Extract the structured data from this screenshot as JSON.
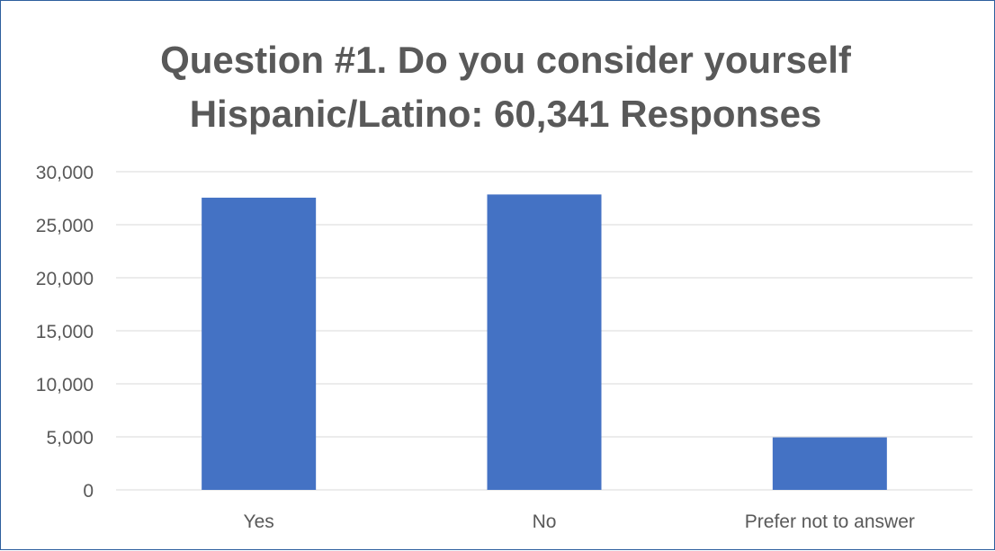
{
  "chart_data": {
    "type": "bar",
    "title_lines": [
      "Question #1. Do you consider yourself",
      "Hispanic/Latino: 60,341 Responses"
    ],
    "categories": [
      "Yes",
      "No",
      "Prefer not to answer"
    ],
    "values": [
      27550,
      27850,
      4950
    ],
    "yticks": [
      "0",
      "5,000",
      "10,000",
      "15,000",
      "20,000",
      "25,000",
      "30,000"
    ],
    "ylim": [
      0,
      30000
    ],
    "grid": true,
    "bar_color": "#4472c4",
    "legend": "none"
  }
}
